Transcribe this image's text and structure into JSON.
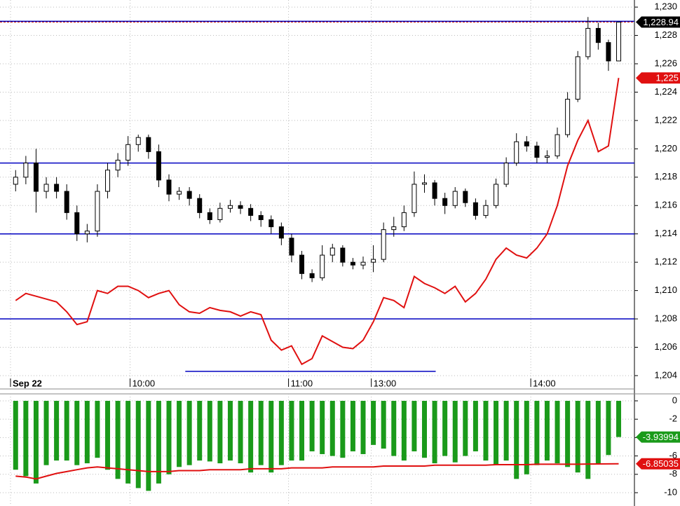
{
  "chart_data": [
    {
      "type": "candlestick",
      "open": [
        1217.5,
        1218,
        1219,
        1217,
        1217.5,
        1217,
        1215.5,
        1214,
        1214.2,
        1217,
        1218.5,
        1219.2,
        1220.3,
        1220.8,
        1219.8,
        1217.8,
        1216.8,
        1217,
        1216.5,
        1215.5,
        1215,
        1215.8,
        1216,
        1215.8,
        1215.3,
        1215,
        1214.5,
        1213.7,
        1212.5,
        1211.2,
        1210.9,
        1212.5,
        1213,
        1212,
        1211.8,
        1212,
        1212.2,
        1214.3,
        1214.5,
        1215.5,
        1217.5,
        1217.6,
        1216.5,
        1216,
        1217,
        1216.2,
        1215.3,
        1216,
        1217.5,
        1219,
        1220.5,
        1220.2,
        1219.4,
        1219.5,
        1221,
        1223.5,
        1226.5,
        1228.5,
        1227.5,
        1226.2
      ],
      "high": [
        1218.5,
        1219.5,
        1220,
        1218,
        1218,
        1217.5,
        1216,
        1214.7,
        1217.5,
        1219,
        1219.7,
        1220.9,
        1221,
        1221,
        1220.3,
        1218.2,
        1217.3,
        1217.3,
        1216.8,
        1215.8,
        1216.2,
        1216.4,
        1216.3,
        1216.1,
        1215.6,
        1215.3,
        1214.8,
        1214,
        1212.8,
        1211.5,
        1213.2,
        1213.3,
        1213.2,
        1212.3,
        1212.4,
        1213.2,
        1214.8,
        1215.2,
        1216,
        1218.4,
        1218.2,
        1217.8,
        1216.9,
        1217.3,
        1217.2,
        1216.5,
        1216.4,
        1217.9,
        1219.4,
        1221.1,
        1220.9,
        1220.5,
        1219.9,
        1221.5,
        1224,
        1226.9,
        1229.3,
        1228.9,
        1227.7,
        1228.94
      ],
      "low": [
        1217,
        1217.5,
        1215.5,
        1216.5,
        1216.5,
        1215,
        1213.5,
        1213.4,
        1213.8,
        1216.5,
        1218,
        1218.8,
        1219.8,
        1219.3,
        1217.3,
        1216.3,
        1216.4,
        1216,
        1215.1,
        1214.7,
        1214.8,
        1215.5,
        1215.4,
        1214.9,
        1214.5,
        1214,
        1213.2,
        1212,
        1210.8,
        1210.6,
        1210.7,
        1212,
        1211.7,
        1211.5,
        1211.5,
        1211.3,
        1212,
        1213.8,
        1214.2,
        1215.2,
        1216.9,
        1216,
        1215.4,
        1215.8,
        1215.9,
        1215,
        1215.1,
        1215.8,
        1217.3,
        1218.8,
        1219.8,
        1219,
        1219,
        1219.3,
        1220.8,
        1223.3,
        1226.3,
        1227,
        1225.5,
        1226.2
      ],
      "close": [
        1218,
        1219,
        1217,
        1217.5,
        1217,
        1215.5,
        1214,
        1214.2,
        1217,
        1218.5,
        1219.2,
        1220.3,
        1220.8,
        1219.8,
        1217.8,
        1216.8,
        1217,
        1216.5,
        1215.5,
        1215,
        1215.8,
        1216,
        1215.8,
        1215.3,
        1215,
        1214.5,
        1213.7,
        1212.5,
        1211.2,
        1210.9,
        1212.5,
        1213,
        1212,
        1211.8,
        1212,
        1212.2,
        1214.3,
        1214.5,
        1215.5,
        1217.5,
        1217.6,
        1216.5,
        1216,
        1217,
        1216.2,
        1215.3,
        1216,
        1217.5,
        1219,
        1220.5,
        1220.2,
        1219.4,
        1219.5,
        1221,
        1223.5,
        1226.5,
        1228.5,
        1227.5,
        1226.2,
        1228.94
      ],
      "series": [
        {
          "color": "#e01010",
          "values": [
            1209.3,
            1209.8,
            1209.6,
            1209.4,
            1209.2,
            1208.5,
            1207.6,
            1207.8,
            1210,
            1209.8,
            1210.3,
            1210.3,
            1210,
            1209.5,
            1209.8,
            1210,
            1209,
            1208.5,
            1208.4,
            1208.8,
            1208.6,
            1208.5,
            1208.2,
            1208.5,
            1208.3,
            1206.5,
            1205.8,
            1206.1,
            1204.8,
            1205.2,
            1206.8,
            1206.4,
            1206,
            1205.9,
            1206.5,
            1207.8,
            1209.5,
            1209.3,
            1208.8,
            1211,
            1210.5,
            1210.2,
            1209.8,
            1210.3,
            1209.2,
            1209.8,
            1210.8,
            1212.2,
            1213,
            1212.5,
            1212.3,
            1213,
            1214,
            1216,
            1218.8,
            1220.6,
            1222,
            1219.8,
            1220.2,
            1225
          ]
        }
      ],
      "xticks": [
        {
          "value": 0,
          "label": "Sep 22"
        },
        {
          "value": 11.7,
          "label": "10:00"
        },
        {
          "value": 27.2,
          "label": "11:00"
        },
        {
          "value": 35.3,
          "label": "13:00"
        },
        {
          "value": 50.9,
          "label": "14:00"
        }
      ],
      "ylim": [
        1203.8,
        1230.5
      ],
      "yticks": [
        {
          "value": 1204,
          "label": "1,204"
        },
        {
          "value": 1206,
          "label": "1,206"
        },
        {
          "value": 1208,
          "label": "1,208"
        },
        {
          "value": 1210,
          "label": "1,210"
        },
        {
          "value": 1212,
          "label": "1,212"
        },
        {
          "value": 1214,
          "label": "1,214"
        },
        {
          "value": 1216,
          "label": "1,216"
        },
        {
          "value": 1218,
          "label": "1,218"
        },
        {
          "value": 1220,
          "label": "1,220"
        },
        {
          "value": 1222,
          "label": "1,222"
        },
        {
          "value": 1224,
          "label": "1,224"
        },
        {
          "value": 1226,
          "label": "1,226"
        },
        {
          "value": 1228,
          "label": "1,228"
        },
        {
          "value": 1230,
          "label": "1,230"
        }
      ],
      "grid": true,
      "hlines": [
        {
          "value": 1229,
          "color": "#0000c0"
        },
        {
          "value": 1219,
          "color": "#0000c0"
        },
        {
          "value": 1214,
          "color": "#0000c0"
        },
        {
          "value": 1208,
          "color": "#0000c0"
        },
        {
          "value": 1204.3,
          "color": "#0000c0",
          "from": 17.1,
          "to": 41.6
        },
        {
          "value": 1228.94,
          "color": "#c00000",
          "dash": true
        }
      ],
      "tags": [
        {
          "value": 1228.94,
          "label": "1,228.94",
          "color": "#000000"
        },
        {
          "value": 1225,
          "label": "1,225",
          "color": "#e01010"
        }
      ]
    },
    {
      "type": "bar",
      "values": [
        -7.5,
        -8.2,
        -9,
        -7,
        -6.5,
        -6.5,
        -7,
        -6.8,
        -6.2,
        -7.5,
        -8.5,
        -9,
        -9.5,
        -9.8,
        -9,
        -8,
        -7.2,
        -7,
        -6.5,
        -6.6,
        -6.8,
        -6.5,
        -6.8,
        -7.8,
        -7,
        -7.8,
        -7,
        -6.5,
        -6.5,
        -5.5,
        -5.8,
        -6,
        -6.2,
        -5.5,
        -5.8,
        -4.8,
        -5.2,
        -6,
        -6.5,
        -5.5,
        -6.2,
        -6.8,
        -6,
        -6.7,
        -6,
        -5.5,
        -6.5,
        -7,
        -6.5,
        -8.5,
        -8,
        -7,
        -6.5,
        -6.8,
        -7.2,
        -7.8,
        -8.5,
        -6.8,
        -5.9,
        -3.93994
      ],
      "color": "#1a9a1a",
      "series": [
        {
          "color": "#e01010",
          "values": [
            -8.2,
            -8.3,
            -8.5,
            -8.2,
            -7.9,
            -7.7,
            -7.5,
            -7.3,
            -7.2,
            -7.3,
            -7.4,
            -7.5,
            -7.6,
            -7.7,
            -7.7,
            -7.7,
            -7.6,
            -7.6,
            -7.6,
            -7.5,
            -7.5,
            -7.5,
            -7.5,
            -7.4,
            -7.4,
            -7.4,
            -7.4,
            -7.3,
            -7.3,
            -7.3,
            -7.3,
            -7.2,
            -7.2,
            -7.2,
            -7.2,
            -7.2,
            -7.1,
            -7.1,
            -7.1,
            -7.1,
            -7.1,
            -7,
            -7,
            -7,
            -7,
            -7,
            -7,
            -6.95,
            -6.95,
            -6.95,
            -6.95,
            -6.9,
            -6.9,
            -6.9,
            -6.9,
            -6.9,
            -6.88,
            -6.87,
            -6.86,
            -6.85035
          ]
        }
      ],
      "ylim": [
        -11.45,
        0.76
      ],
      "yticks": [
        0,
        -2,
        -4,
        -6,
        -8,
        -10
      ],
      "grid": true,
      "tags": [
        {
          "value": -3.93994,
          "label": "-3.93994",
          "color": "#1a9a1a"
        },
        {
          "value": -6.85035,
          "label": "-6.85035",
          "color": "#e01010"
        }
      ]
    }
  ]
}
